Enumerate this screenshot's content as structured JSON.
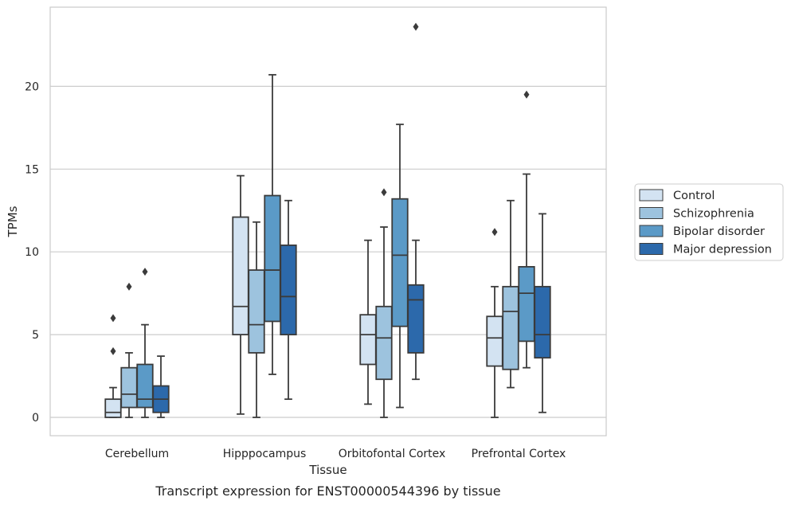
{
  "chart_data": {
    "type": "box",
    "xlabel": "Tissue",
    "ylabel": "TPMs",
    "caption": "Transcript expression for ENST00000544396 by tissue",
    "categories": [
      "Cerebellum",
      "Hipppocampus",
      "Orbitofontal Cortex",
      "Prefrontal Cortex"
    ],
    "ylim": [
      -1.2,
      24.6
    ],
    "yticks": [
      0,
      5,
      10,
      15,
      20
    ],
    "grid": "horizontal",
    "legend_position": "right",
    "series": [
      {
        "name": "Control",
        "color": "#d3e3f2",
        "boxes": [
          {
            "whislo": 0.0,
            "q1": 0.0,
            "med": 0.3,
            "q3": 1.1,
            "whishi": 1.8,
            "fliers": [
              4.0,
              6.0
            ]
          },
          {
            "whislo": 0.2,
            "q1": 5.0,
            "med": 6.7,
            "q3": 12.1,
            "whishi": 14.6,
            "fliers": []
          },
          {
            "whislo": 0.8,
            "q1": 3.2,
            "med": 5.0,
            "q3": 6.2,
            "whishi": 10.7,
            "fliers": []
          },
          {
            "whislo": 0.0,
            "q1": 3.1,
            "med": 4.8,
            "q3": 6.1,
            "whishi": 7.9,
            "fliers": [
              11.2
            ]
          }
        ]
      },
      {
        "name": "Schizophrenia",
        "color": "#9dc3de",
        "boxes": [
          {
            "whislo": 0.0,
            "q1": 0.6,
            "med": 1.4,
            "q3": 3.0,
            "whishi": 3.9,
            "fliers": [
              7.9
            ]
          },
          {
            "whislo": 0.0,
            "q1": 3.9,
            "med": 5.6,
            "q3": 8.9,
            "whishi": 11.8,
            "fliers": []
          },
          {
            "whislo": 0.0,
            "q1": 2.3,
            "med": 4.8,
            "q3": 6.7,
            "whishi": 11.5,
            "fliers": [
              13.6
            ]
          },
          {
            "whislo": 1.8,
            "q1": 2.9,
            "med": 6.4,
            "q3": 7.9,
            "whishi": 13.1,
            "fliers": []
          }
        ]
      },
      {
        "name": "Bipolar disorder",
        "color": "#5b9ac7",
        "boxes": [
          {
            "whislo": 0.0,
            "q1": 0.6,
            "med": 1.1,
            "q3": 3.2,
            "whishi": 5.6,
            "fliers": [
              8.8
            ]
          },
          {
            "whislo": 2.6,
            "q1": 5.8,
            "med": 8.9,
            "q3": 13.4,
            "whishi": 20.7,
            "fliers": []
          },
          {
            "whislo": 0.6,
            "q1": 5.5,
            "med": 9.8,
            "q3": 13.2,
            "whishi": 17.7,
            "fliers": []
          },
          {
            "whislo": 3.0,
            "q1": 4.6,
            "med": 7.5,
            "q3": 9.1,
            "whishi": 14.7,
            "fliers": [
              19.5
            ]
          }
        ]
      },
      {
        "name": "Major depression",
        "color": "#2c69ab",
        "boxes": [
          {
            "whislo": 0.0,
            "q1": 0.3,
            "med": 1.1,
            "q3": 1.9,
            "whishi": 3.7,
            "fliers": []
          },
          {
            "whislo": 1.1,
            "q1": 5.0,
            "med": 7.3,
            "q3": 10.4,
            "whishi": 13.1,
            "fliers": []
          },
          {
            "whislo": 2.3,
            "q1": 3.9,
            "med": 7.1,
            "q3": 8.0,
            "whishi": 10.7,
            "fliers": [
              23.6
            ]
          },
          {
            "whislo": 0.3,
            "q1": 3.6,
            "med": 5.0,
            "q3": 7.9,
            "whishi": 12.3,
            "fliers": []
          }
        ]
      }
    ]
  }
}
